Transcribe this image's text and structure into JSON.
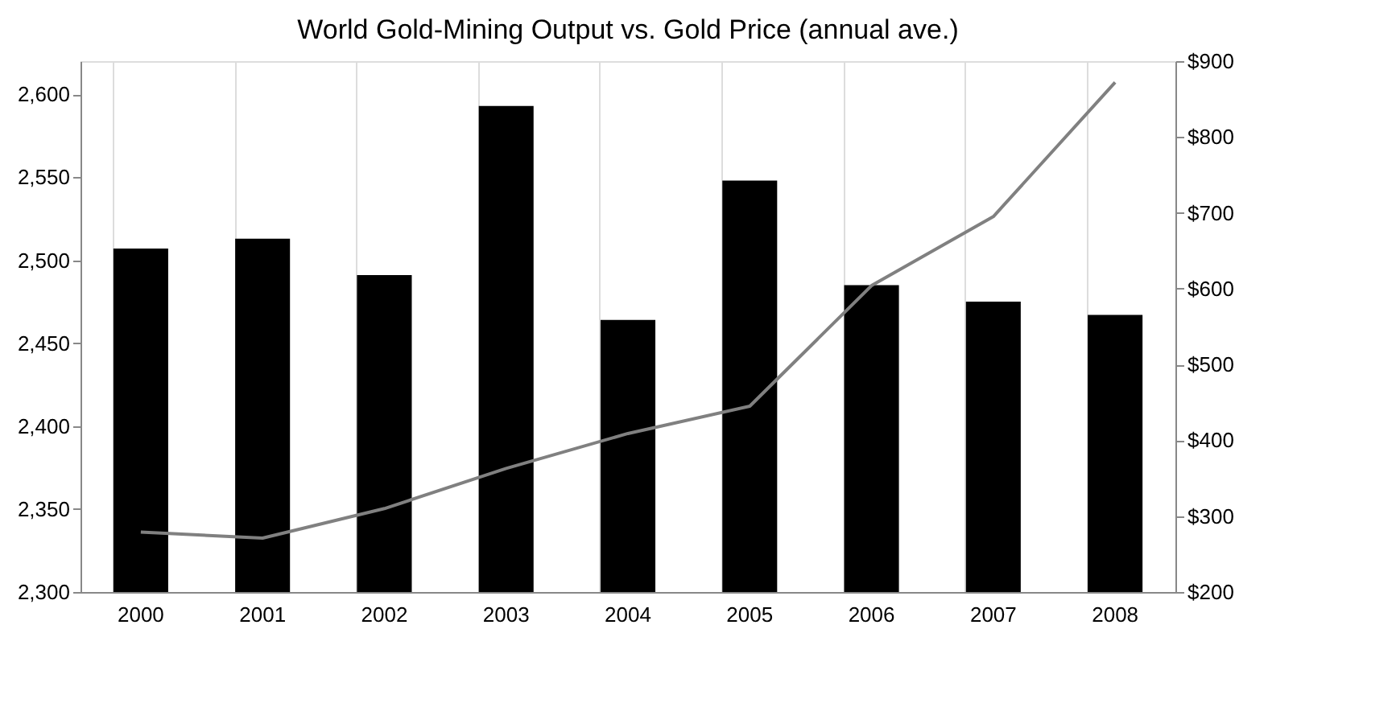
{
  "chart_data": {
    "type": "bar",
    "title": "World Gold-Mining Output vs. Gold Price (annual ave.)",
    "categories": [
      "2000",
      "2001",
      "2002",
      "2003",
      "2004",
      "2005",
      "2006",
      "2007",
      "2008"
    ],
    "series": [
      {
        "color": "#000000",
        "values": [
          2507,
          2513,
          2491,
          2593,
          2464,
          2548,
          2485,
          2475,
          2467
        ]
      },
      {
        "type": "line",
        "axis": "y2",
        "color": "#808080",
        "values": [
          279,
          271,
          310,
          363,
          409,
          445,
          604,
          695,
          872
        ]
      }
    ],
    "ylim": [
      2300,
      2620
    ],
    "yticks": [
      {
        "value": 2300,
        "label": "2,300"
      },
      {
        "value": 2350,
        "label": "2,350"
      },
      {
        "value": 2400,
        "label": "2,400"
      },
      {
        "value": 2450,
        "label": "2,450"
      },
      {
        "value": 2500,
        "label": "2,500"
      },
      {
        "value": 2550,
        "label": "2,550"
      },
      {
        "value": 2600,
        "label": "2,600"
      }
    ],
    "y2lim": [
      200,
      900
    ],
    "y2ticks": [
      {
        "value": 200,
        "label": "$200"
      },
      {
        "value": 300,
        "label": "$300"
      },
      {
        "value": 400,
        "label": "$400"
      },
      {
        "value": 500,
        "label": "$500"
      },
      {
        "value": 600,
        "label": "$600"
      },
      {
        "value": 700,
        "label": "$700"
      },
      {
        "value": 800,
        "label": "$800"
      },
      {
        "value": 900,
        "label": "$900"
      }
    ],
    "grid": "x"
  }
}
